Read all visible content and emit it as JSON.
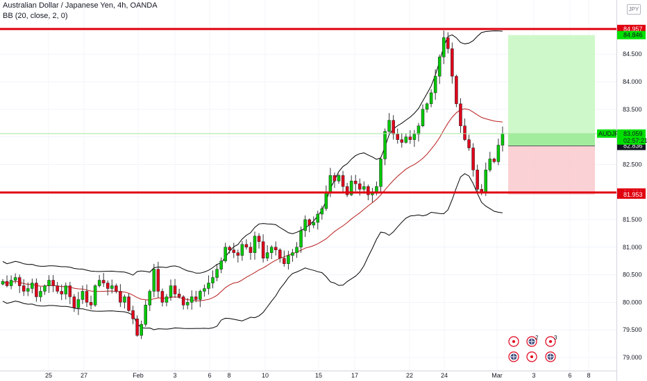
{
  "header": {
    "title": "Australian Dollar / Japanese Yen, 4h, OANDA",
    "indicator": "BB (20, close, 2, 0)",
    "currency_badge": "JPY"
  },
  "colors": {
    "up": "#00c805",
    "down": "#e0001b",
    "bb_band": "#000000",
    "bb_basis": "#b71c1c",
    "level_line": "#e00010",
    "target_zone": "#c6f7c0",
    "stop_zone": "#f9c9cc",
    "price_label_bg": "#00e000",
    "dark_label_bg": "#131722",
    "red_label_bg": "#e00010"
  },
  "chart_data": {
    "type": "candlestick",
    "symbol": "AUDJPY",
    "timeframe": "4h",
    "ylim": [
      78.9,
      85.5
    ],
    "y_ticks": [
      79.0,
      79.5,
      80.0,
      80.5,
      81.0,
      81.5,
      82.0,
      82.5,
      83.0,
      83.5,
      84.0,
      84.5
    ],
    "y_tick_labels": [
      "79.000",
      "79.500",
      "80.000",
      "80.500",
      "81.000",
      "81.500",
      "82.000",
      "82.500",
      "83.000",
      "83.500",
      "84.000",
      "84.500"
    ],
    "x_tick_labels": [
      "25",
      "27",
      "Feb",
      "3",
      "6",
      "8",
      "10",
      "15",
      "17",
      "22",
      "24",
      "Mar",
      "3",
      "6",
      "8"
    ],
    "levels": [
      84.957,
      81.991
    ],
    "price_labels": {
      "level_high": "84.957",
      "target": "84.846",
      "current_symbol": "AUDJPY",
      "current": "83.059",
      "countdown": "02:57:21",
      "entry": "82.836",
      "level_low": "81.991",
      "stop": "81.953"
    },
    "position": {
      "entry": 82.836,
      "target": 84.846,
      "stop": 81.953
    },
    "closes": [
      80.38,
      80.3,
      80.4,
      80.45,
      80.3,
      80.2,
      80.25,
      80.35,
      80.1,
      80.2,
      80.3,
      80.4,
      80.3,
      80.2,
      80.15,
      80.3,
      80.1,
      79.9,
      80.05,
      80.2,
      80.0,
      79.95,
      80.3,
      80.4,
      80.35,
      80.25,
      80.3,
      80.2,
      80.0,
      80.1,
      79.85,
      79.7,
      79.4,
      79.6,
      79.95,
      80.2,
      80.6,
      80.2,
      80.0,
      80.1,
      80.3,
      80.15,
      80.1,
      79.95,
      80.0,
      80.1,
      80.05,
      80.2,
      80.25,
      80.35,
      80.45,
      80.6,
      80.75,
      81.0,
      80.95,
      80.9,
      80.85,
      81.05,
      81.0,
      80.9,
      81.2,
      81.1,
      80.8,
      80.9,
      81.0,
      80.95,
      80.8,
      80.7,
      80.85,
      80.9,
      81.0,
      81.3,
      81.5,
      81.4,
      81.45,
      81.6,
      81.7,
      82.0,
      82.3,
      82.2,
      82.3,
      82.1,
      81.95,
      82.2,
      82.15,
      82.05,
      82.1,
      81.95,
      82.0,
      82.1,
      82.6,
      83.1,
      83.3,
      83.05,
      82.95,
      82.9,
      83.0,
      82.95,
      83.05,
      83.2,
      83.5,
      83.6,
      83.8,
      84.1,
      84.45,
      84.8,
      84.6,
      84.1,
      83.6,
      83.2,
      82.95,
      82.8,
      82.4,
      82.05,
      82.0,
      82.4,
      82.6,
      82.55,
      82.85,
      83.06
    ]
  }
}
